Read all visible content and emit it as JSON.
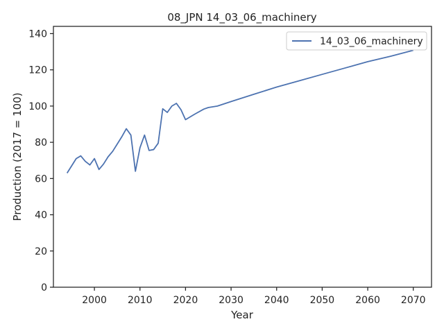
{
  "chart_data": {
    "type": "line",
    "title": "08_JPN 14_03_06_machinery",
    "xlabel": "Year",
    "ylabel": "Production (2017 = 100)",
    "xlim": [
      1991,
      2074
    ],
    "ylim": [
      0,
      144
    ],
    "xticks": [
      2000,
      2010,
      2020,
      2030,
      2040,
      2050,
      2060,
      2070
    ],
    "yticks": [
      0,
      20,
      40,
      60,
      80,
      100,
      120,
      140
    ],
    "grid": false,
    "legend_position": "top-right",
    "series": [
      {
        "name": "14_03_06_machinery",
        "color": "#4c72b0",
        "x": [
          1994,
          1996,
          1997,
          1998,
          1999,
          2000,
          2001,
          2002,
          2003,
          2004,
          2005,
          2006,
          2007,
          2008,
          2009,
          2010,
          2011,
          2012,
          2013,
          2014,
          2015,
          2016,
          2017,
          2018,
          2019,
          2020,
          2022,
          2024,
          2025,
          2027,
          2030,
          2035,
          2040,
          2045,
          2050,
          2055,
          2060,
          2065,
          2070
        ],
        "y": [
          63,
          71,
          72.5,
          69.5,
          67.5,
          71,
          65,
          68,
          72,
          75,
          79,
          83,
          87.5,
          84,
          64,
          77,
          84,
          75.5,
          76,
          79.5,
          98.5,
          96.5,
          100,
          101.5,
          98,
          92.5,
          95.5,
          98.3,
          99.2,
          100,
          102.5,
          106.5,
          110.5,
          114,
          117.5,
          121,
          124.5,
          127.5,
          130.8
        ]
      }
    ]
  }
}
